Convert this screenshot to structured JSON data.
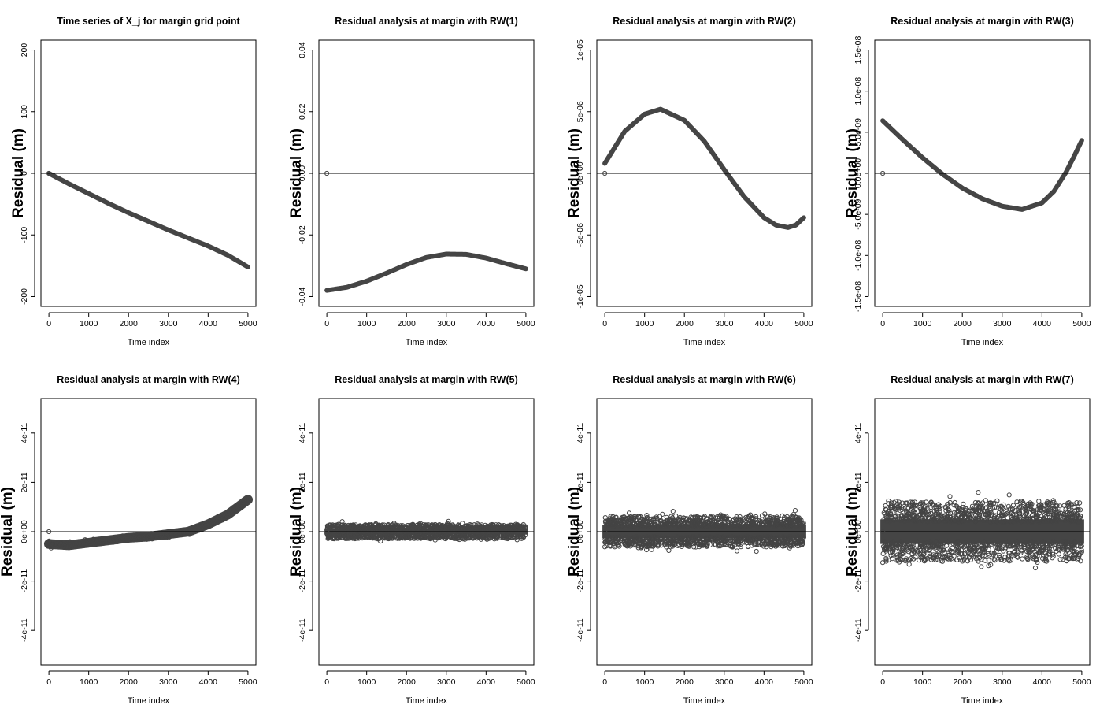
{
  "chart_data": [
    {
      "type": "scatter",
      "title": "Time series of X_j for margin grid point",
      "xlabel": "Time index",
      "ylabel": "Residual (m)",
      "xlim": [
        0,
        5000
      ],
      "ylim": [
        -200,
        200
      ],
      "x_ticks": [
        0,
        1000,
        2000,
        3000,
        4000,
        5000
      ],
      "y_ticks": [
        -200,
        -100,
        0,
        100,
        200
      ],
      "y_tick_labels": [
        "-200",
        "-100",
        "0",
        "100",
        "200"
      ],
      "zero_line": true,
      "outlier": {
        "x": 0,
        "y": 0
      },
      "series": [
        {
          "name": "X_j",
          "render": "band",
          "noise": 0,
          "x": [
            0,
            500,
            1000,
            1500,
            2000,
            2500,
            3000,
            3500,
            4000,
            4500,
            5000
          ],
          "y": [
            0,
            -17,
            -33,
            -49,
            -64,
            -78,
            -92,
            -105,
            -118,
            -133,
            -152
          ]
        }
      ]
    },
    {
      "type": "scatter",
      "title": "Residual analysis at margin with RW(1)",
      "xlabel": "Time index",
      "ylabel": "Residual (m)",
      "xlim": [
        0,
        5000
      ],
      "ylim": [
        -0.04,
        0.04
      ],
      "x_ticks": [
        0,
        1000,
        2000,
        3000,
        4000,
        5000
      ],
      "y_ticks": [
        -0.04,
        -0.02,
        0,
        0.02,
        0.04
      ],
      "y_tick_labels": [
        "-0.04",
        "-0.02",
        "0.00",
        "0.02",
        "0.04"
      ],
      "zero_line": true,
      "outlier": {
        "x": 0,
        "y": 0
      },
      "series": [
        {
          "name": "RW(1) residual",
          "render": "band",
          "noise": 0,
          "x": [
            0,
            500,
            1000,
            1500,
            2000,
            2500,
            3000,
            3500,
            4000,
            4500,
            5000
          ],
          "y": [
            -0.038,
            -0.037,
            -0.035,
            -0.0324,
            -0.0296,
            -0.0273,
            -0.0262,
            -0.0263,
            -0.0275,
            -0.0293,
            -0.031
          ]
        }
      ]
    },
    {
      "type": "scatter",
      "title": "Residual analysis at margin with RW(2)",
      "xlabel": "Time index",
      "ylabel": "Residual (m)",
      "xlim": [
        0,
        5000
      ],
      "ylim": [
        -1e-05,
        1e-05
      ],
      "x_ticks": [
        0,
        1000,
        2000,
        3000,
        4000,
        5000
      ],
      "y_ticks": [
        -1e-05,
        -5e-06,
        0,
        5e-06,
        1e-05
      ],
      "y_tick_labels": [
        "-1e-05",
        "-5e-06",
        "0e+00",
        "5e-06",
        "1e-05"
      ],
      "zero_line": true,
      "outlier": {
        "x": 0,
        "y": 0
      },
      "series": [
        {
          "name": "RW(2) residual",
          "render": "band",
          "noise": 0,
          "x": [
            0,
            500,
            1000,
            1400,
            2000,
            2500,
            3000,
            3500,
            4000,
            4300,
            4600,
            4800,
            5000
          ],
          "y": [
            8e-07,
            3.4e-06,
            4.8e-06,
            5.2e-06,
            4.3e-06,
            2.6e-06,
            3e-07,
            -1.9e-06,
            -3.6e-06,
            -4.2e-06,
            -4.4e-06,
            -4.2e-06,
            -3.6e-06
          ]
        }
      ]
    },
    {
      "type": "scatter",
      "title": "Residual analysis at margin with RW(3)",
      "xlabel": "Time index",
      "ylabel": "Residual (m)",
      "xlim": [
        0,
        5000
      ],
      "ylim": [
        -1.5e-08,
        1.5e-08
      ],
      "x_ticks": [
        0,
        1000,
        2000,
        3000,
        4000,
        5000
      ],
      "y_ticks": [
        -1.5e-08,
        -1e-08,
        -5e-09,
        0,
        5e-09,
        1e-08,
        1.5e-08
      ],
      "y_tick_labels": [
        "-1.5e-08",
        "-1.0e-08",
        "-5.0e-09",
        "0.0e+00",
        "5.0e-09",
        "1.0e-08",
        "1.5e-08"
      ],
      "zero_line": true,
      "outlier": {
        "x": 0,
        "y": 0
      },
      "series": [
        {
          "name": "RW(3) residual",
          "render": "band",
          "noise": 0,
          "x": [
            0,
            500,
            1000,
            1500,
            2000,
            2500,
            3000,
            3500,
            4000,
            4300,
            4600,
            4800,
            5000
          ],
          "y": [
            6.4e-09,
            4.1e-09,
            1.9e-09,
            -1e-10,
            -1.8e-09,
            -3.1e-09,
            -4e-09,
            -4.4e-09,
            -3.6e-09,
            -2.2e-09,
            1e-10,
            2e-09,
            4e-09
          ]
        }
      ]
    },
    {
      "type": "scatter",
      "title": "Residual analysis at margin with RW(4)",
      "xlabel": "Time index",
      "ylabel": "Residual (m)",
      "xlim": [
        0,
        5000
      ],
      "ylim": [
        -5e-11,
        5e-11
      ],
      "x_ticks": [
        0,
        1000,
        2000,
        3000,
        4000,
        5000
      ],
      "y_ticks": [
        -4e-11,
        -2e-11,
        0,
        2e-11,
        4e-11
      ],
      "y_tick_labels": [
        "-4e-11",
        "-2e-11",
        "0e+00",
        "2e-11",
        "4e-11"
      ],
      "zero_line": true,
      "outlier": {
        "x": 0,
        "y": 0
      },
      "series": [
        {
          "name": "RW(4) residual",
          "render": "band",
          "noise": 5e-13,
          "x": [
            0,
            500,
            1000,
            1500,
            2000,
            2500,
            3000,
            3500,
            4000,
            4500,
            5000
          ],
          "y": [
            -5e-12,
            -5.5e-12,
            -4.5e-12,
            -3.5e-12,
            -2.5e-12,
            -2e-12,
            -1e-12,
            0,
            3e-12,
            7e-12,
            1.3e-11
          ]
        }
      ]
    },
    {
      "type": "scatter",
      "title": "Residual analysis at margin with RW(5)",
      "xlabel": "Time index",
      "ylabel": "Residual (m)",
      "xlim": [
        0,
        5000
      ],
      "ylim": [
        -5e-11,
        5e-11
      ],
      "x_ticks": [
        0,
        1000,
        2000,
        3000,
        4000,
        5000
      ],
      "y_ticks": [
        -4e-11,
        -2e-11,
        0,
        2e-11,
        4e-11
      ],
      "y_tick_labels": [
        "-4e-11",
        "-2e-11",
        "0e+00",
        "2e-11",
        "4e-11"
      ],
      "zero_line": true,
      "outlier": {
        "x": 0,
        "y": 0
      },
      "series": [
        {
          "name": "RW(5) residual",
          "render": "noise",
          "noise": 1.2e-12,
          "x": [
            0,
            5000
          ],
          "y": [
            0,
            0
          ]
        }
      ]
    },
    {
      "type": "scatter",
      "title": "Residual analysis at margin with RW(6)",
      "xlabel": "Time index",
      "ylabel": "Residual (m)",
      "xlim": [
        0,
        5000
      ],
      "ylim": [
        -5e-11,
        5e-11
      ],
      "x_ticks": [
        0,
        1000,
        2000,
        3000,
        4000,
        5000
      ],
      "y_ticks": [
        -4e-11,
        -2e-11,
        0,
        2e-11,
        4e-11
      ],
      "y_tick_labels": [
        "-4e-11",
        "-2e-11",
        "0e+00",
        "2e-11",
        "4e-11"
      ],
      "zero_line": true,
      "outlier": {
        "x": 0,
        "y": 0
      },
      "series": [
        {
          "name": "RW(6) residual",
          "render": "noise",
          "noise": 2.6e-12,
          "x": [
            0,
            5000
          ],
          "y": [
            0,
            0
          ]
        }
      ]
    },
    {
      "type": "scatter",
      "title": "Residual analysis at margin with RW(7)",
      "xlabel": "Time index",
      "ylabel": "Residual (m)",
      "xlim": [
        0,
        5000
      ],
      "ylim": [
        -5e-11,
        5e-11
      ],
      "x_ticks": [
        0,
        1000,
        2000,
        3000,
        4000,
        5000
      ],
      "y_ticks": [
        -4e-11,
        -2e-11,
        0,
        2e-11,
        4e-11
      ],
      "y_tick_labels": [
        "-4e-11",
        "-2e-11",
        "0e+00",
        "2e-11",
        "4e-11"
      ],
      "zero_line": true,
      "outlier": {
        "x": 0,
        "y": 0
      },
      "series": [
        {
          "name": "RW(7) residual",
          "render": "noise",
          "noise": 5e-12,
          "x": [
            0,
            5000
          ],
          "y": [
            0,
            0
          ]
        }
      ]
    }
  ]
}
